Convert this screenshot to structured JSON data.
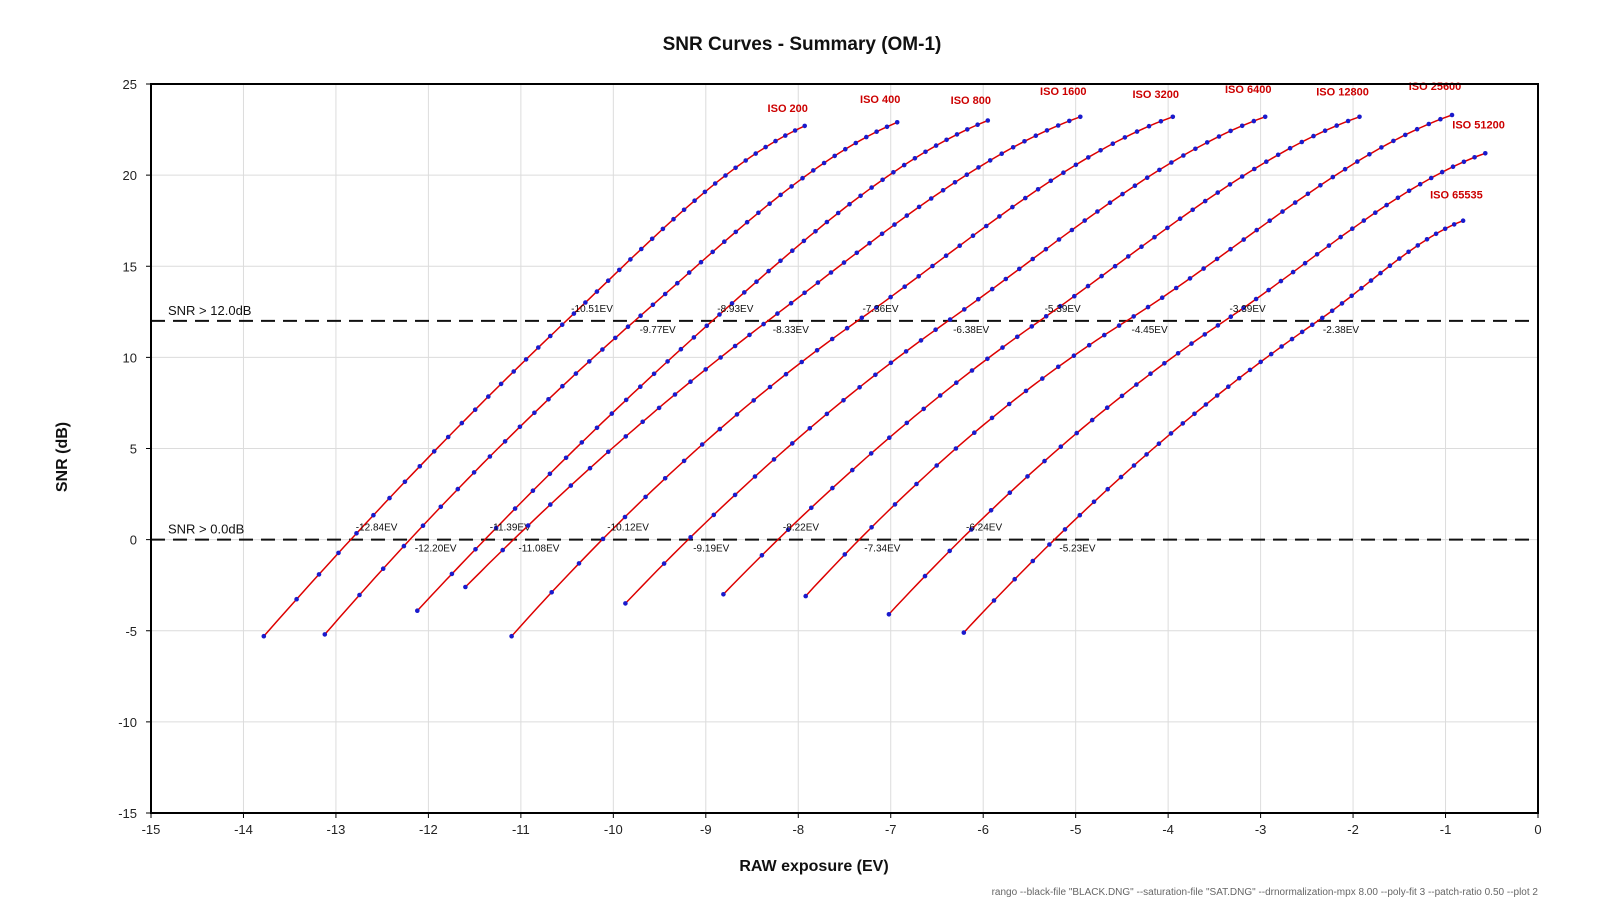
{
  "chart_data": {
    "type": "line",
    "title": "SNR Curves - Summary (OM-1)",
    "xlabel": "RAW exposure (EV)",
    "ylabel": "SNR (dB)",
    "xlim": [
      -15,
      0
    ],
    "ylim": [
      -15,
      25
    ],
    "xticks": [
      -15,
      -14,
      -13,
      -12,
      -11,
      -10,
      -9,
      -8,
      -7,
      -6,
      -5,
      -4,
      -3,
      -2,
      -1,
      0
    ],
    "yticks": [
      -15,
      -10,
      -5,
      0,
      5,
      10,
      15,
      20,
      25
    ],
    "grid": true,
    "colors": {
      "fit_line": "#dd0000",
      "points": "#1a1acc",
      "labels": "#cc0000",
      "threshold": "#111111"
    },
    "thresholds": [
      {
        "label": "SNR > 12.0dB",
        "y": 12
      },
      {
        "label": "SNR > 0.0dB",
        "y": 0
      }
    ],
    "series": [
      {
        "name": "ISO 200",
        "x_start": -13.78,
        "x_end": -7.93,
        "y_start": -5.3,
        "y_end": 22.7,
        "cross_12": "-10.51EV",
        "cross_0": "-12.84EV"
      },
      {
        "name": "ISO 400",
        "x_start": -13.12,
        "x_end": -6.93,
        "y_start": -5.2,
        "y_end": 22.9,
        "cross_12": "-9.77EV",
        "cross_0": "-12.20EV"
      },
      {
        "name": "ISO 800",
        "x_start": -12.12,
        "x_end": -5.95,
        "y_start": -3.9,
        "y_end": 23.0,
        "cross_12": "-8.93EV",
        "cross_0": "-11.39EV"
      },
      {
        "name": "ISO 1600",
        "x_start": -11.6,
        "x_end": -4.95,
        "y_start": -2.6,
        "y_end": 23.2,
        "cross_12": "-8.33EV",
        "cross_0": "-11.08EV"
      },
      {
        "name": "ISO 3200",
        "x_start": -11.1,
        "x_end": -3.95,
        "y_start": -5.3,
        "y_end": 23.2,
        "cross_12": "-7.36EV",
        "cross_0": "-10.12EV"
      },
      {
        "name": "ISO 6400",
        "x_start": -9.87,
        "x_end": -2.95,
        "y_start": -3.5,
        "y_end": 23.2,
        "cross_12": "-6.38EV",
        "cross_0": "-9.19EV"
      },
      {
        "name": "ISO 12800",
        "x_start": -8.81,
        "x_end": -1.93,
        "y_start": -3.0,
        "y_end": 23.2,
        "cross_12": "-5.39EV",
        "cross_0": "-8.22EV"
      },
      {
        "name": "ISO 25600",
        "x_start": -7.92,
        "x_end": -0.93,
        "y_start": -3.1,
        "y_end": 23.3,
        "cross_12": "-4.45EV",
        "cross_0": "-7.34EV"
      },
      {
        "name": "ISO 51200",
        "x_start": -7.02,
        "x_end": -0.57,
        "y_start": -4.1,
        "y_end": 21.2,
        "cross_12": "-3.39EV",
        "cross_0": "-6.24EV"
      },
      {
        "name": "ISO 65535",
        "x_start": -6.21,
        "x_end": -0.81,
        "y_start": -5.1,
        "y_end": 17.5,
        "cross_12": "-2.38EV",
        "cross_0": "-5.23EV"
      }
    ],
    "footnote": "rango --black-file \"BLACK.DNG\" --saturation-file \"SAT.DNG\" --drnormalization-mpx 8.00 --poly-fit 3 --patch-ratio 0.50 --plot 2"
  }
}
